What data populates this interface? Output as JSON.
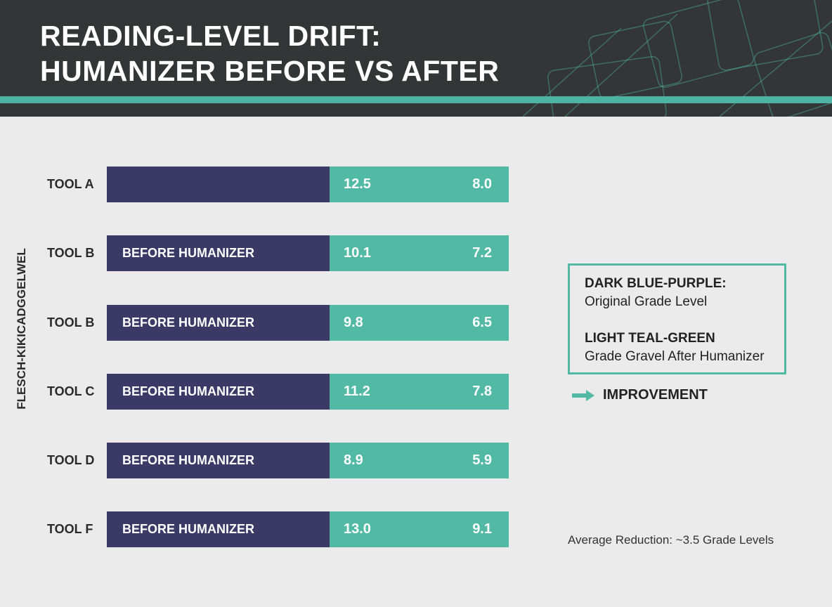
{
  "header": {
    "title_line1": "READING-LEVEL DRIFT:",
    "title_line2": "HUMANIZER BEFORE VS AFTER"
  },
  "colors": {
    "before": "#3b3a66",
    "after": "#52b9a5",
    "header": "#333537",
    "accent": "#4db3a3",
    "background": "#ebebeb"
  },
  "chart_data": {
    "type": "bar",
    "orientation": "horizontal-stacked",
    "title": "READING-LEVEL DRIFT: HUMANIZER BEFORE VS AFTER",
    "ylabel": "FLESCH-KIKICADGGELWEL",
    "categories": [
      "TOOL A",
      "TOOL B",
      "TOOL B",
      "TOOL C",
      "TOOL D",
      "TOOL F"
    ],
    "bar_labels": [
      "",
      "BEFORE HUMANIZER",
      "BEFORE HUMANIZER",
      "BEFORE HUMANIZER",
      "BEFORE HUMANIZER",
      "BEFORE HUMANIZER"
    ],
    "series": [
      {
        "name": "Original Grade Level",
        "values": [
          12.5,
          10.1,
          9.8,
          11.2,
          8.9,
          13.0
        ],
        "labels": [
          "12.5",
          "10.1",
          "9.8",
          "11.2",
          "8.9",
          "13.0"
        ]
      },
      {
        "name": "Grade Gravel After Humanizer",
        "values": [
          8.0,
          7.2,
          6.5,
          7.8,
          5.9,
          9.1
        ],
        "labels": [
          "8.0",
          "7.2",
          "6.5",
          "7.8",
          "5.9",
          "9.1"
        ]
      }
    ],
    "legend_placement": "right",
    "grid": false
  },
  "legend": {
    "h1": "DARK BLUE-PURPLE:",
    "t1": "Original Grade Level",
    "h2": "LIGHT TEAL-GREEN",
    "t2": "Grade Gravel After Humanizer",
    "improvement": "IMPROVEMENT"
  },
  "footnote": "Average Reduction: ~3.5 Grade Levels"
}
